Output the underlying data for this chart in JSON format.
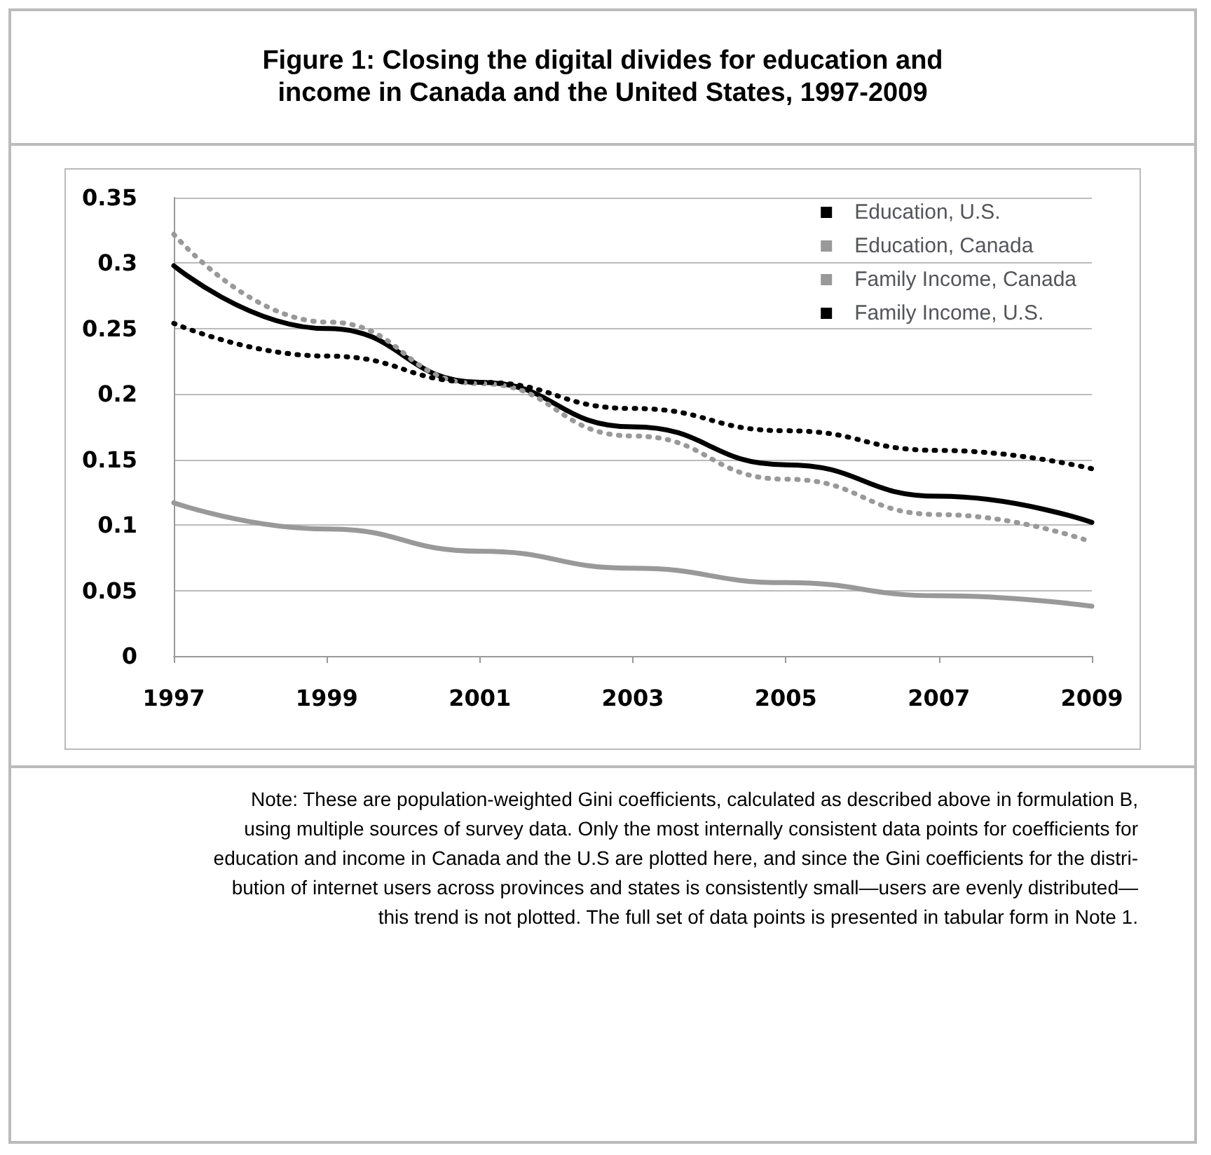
{
  "chart_data": {
    "type": "line",
    "title": "Figure 1: Closing the digital divides for education and\nincome in Canada and the United States, 1997-2009",
    "x": [
      1997,
      1999,
      2001,
      2003,
      2005,
      2007,
      2009
    ],
    "series": [
      {
        "name": "Education, U.S.",
        "color": "#000000",
        "line_style": "solid",
        "values": [
          0.298,
          0.25,
          0.209,
          0.175,
          0.146,
          0.122,
          0.102
        ]
      },
      {
        "name": "Education, Canada",
        "color": "#999999",
        "line_style": "solid",
        "values": [
          0.117,
          0.097,
          0.08,
          0.067,
          0.056,
          0.046,
          0.038
        ]
      },
      {
        "name": "Family Income, Canada",
        "color": "#999999",
        "line_style": "dotted",
        "values": [
          0.322,
          0.255,
          0.208,
          0.168,
          0.135,
          0.108,
          0.087
        ]
      },
      {
        "name": "Family Income, U.S.",
        "color": "#000000",
        "line_style": "dotted",
        "values": [
          0.254,
          0.229,
          0.209,
          0.189,
          0.172,
          0.157,
          0.143
        ]
      }
    ],
    "xlim": [
      1997,
      2009
    ],
    "xticks": [
      1997,
      1999,
      2001,
      2003,
      2005,
      2007,
      2009
    ],
    "ylim": [
      0,
      0.35
    ],
    "yticks": [
      0,
      0.05,
      0.1,
      0.15,
      0.2,
      0.25,
      0.3,
      0.35
    ],
    "grid": "y",
    "legend": "top right",
    "marker": "none",
    "annotations": [
      "Note:  These are population-weighted Gini coefficients, calculated as described above in formulation B,\nusing multiple sources of survey data.  Only the most internally consistent data points for coefficients for\neducation and income in Canada and the U.S are plotted here, and since the Gini coefficients for the distri-\nbution of internet users across provinces and states is consistently small—users are evenly distributed—\nthis trend is not plotted. The full set of data points is presented in tabular form in Note 1."
    ]
  }
}
